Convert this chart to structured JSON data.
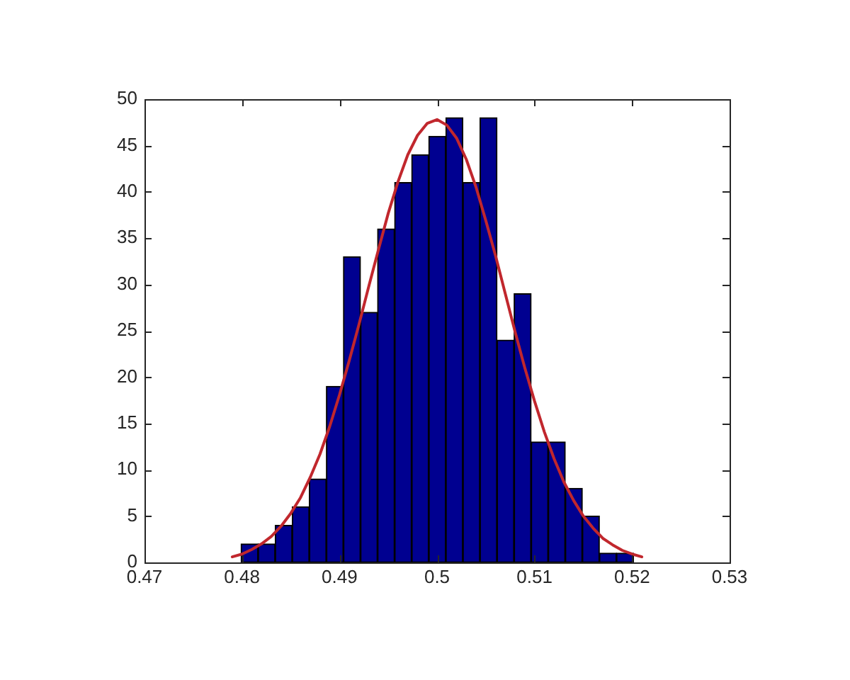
{
  "chart_data": {
    "type": "histogram",
    "bins": [
      0.4799,
      0.48165,
      0.4834,
      0.48515,
      0.4869,
      0.48865,
      0.4904,
      0.49215,
      0.4939,
      0.49565,
      0.4974,
      0.49915,
      0.5009,
      0.50265,
      0.5044,
      0.50615,
      0.5079,
      0.50965,
      0.5114,
      0.51315,
      0.5149,
      0.51665,
      0.5184,
      0.52015
    ],
    "series": [
      {
        "color": "#000090",
        "values": [
          2,
          2,
          4,
          6,
          9,
          19,
          33,
          27,
          36,
          41,
          44,
          46,
          48,
          41,
          48,
          24,
          29,
          13,
          13,
          8,
          5,
          1,
          1
        ]
      },
      {
        "type": "line",
        "color": "#c1272d",
        "marker": "none",
        "x": [
          0.479,
          0.48,
          0.481,
          0.482,
          0.483,
          0.484,
          0.485,
          0.486,
          0.487,
          0.488,
          0.489,
          0.49,
          0.491,
          0.492,
          0.493,
          0.494,
          0.495,
          0.496,
          0.497,
          0.498,
          0.499,
          0.5,
          0.501,
          0.502,
          0.503,
          0.504,
          0.505,
          0.506,
          0.507,
          0.508,
          0.509,
          0.51,
          0.511,
          0.512,
          0.513,
          0.514,
          0.515,
          0.516,
          0.517,
          0.518,
          0.519,
          0.52,
          0.521
        ],
        "values": [
          0.6,
          0.9,
          1.4,
          2.0,
          2.8,
          3.9,
          5.3,
          7.0,
          9.2,
          11.7,
          14.7,
          18.1,
          21.8,
          25.7,
          29.8,
          33.8,
          37.7,
          41.1,
          44.0,
          46.1,
          47.4,
          47.8,
          47.2,
          45.8,
          43.5,
          40.5,
          36.9,
          33.1,
          29.0,
          24.9,
          21.0,
          17.4,
          14.1,
          11.2,
          8.7,
          6.7,
          5.0,
          3.7,
          2.6,
          1.9,
          1.3,
          0.9,
          0.6
        ]
      }
    ],
    "xlim": [
      0.47,
      0.53
    ],
    "xticks": [
      0.47,
      0.48,
      0.49,
      0.5,
      0.51,
      0.52,
      0.53
    ],
    "ylim": [
      0,
      50
    ],
    "yticks": [
      0,
      5,
      10,
      15,
      20,
      25,
      30,
      35,
      40,
      45,
      50
    ]
  }
}
